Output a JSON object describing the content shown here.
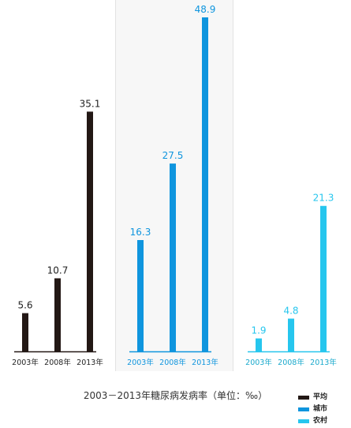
{
  "chart_data": {
    "type": "bar",
    "categories": [
      "2003年",
      "2008年",
      "2013年"
    ],
    "series": [
      {
        "name": "平均",
        "color": "#231815",
        "values": [
          5.6,
          10.7,
          35.1
        ],
        "labels": [
          "5.6",
          "10.7",
          "35.1"
        ]
      },
      {
        "name": "城市",
        "color": "#0f95de",
        "values": [
          16.3,
          27.5,
          48.9
        ],
        "labels": [
          "16.3",
          "27.5",
          "48.9"
        ]
      },
      {
        "name": "农村",
        "color": "#26c6ee",
        "values": [
          1.9,
          4.8,
          21.3
        ],
        "labels": [
          "1.9",
          "4.8",
          "21.3"
        ]
      }
    ],
    "title": "2003－2013年糖尿病发病率（单位：‰）",
    "ylim": [
      0,
      52
    ],
    "layout": "three side-by-side panels, one per series",
    "grid": false,
    "legend": "bottom-right"
  },
  "background_colors": [
    "#ffffff",
    "#f7f7f7",
    "#ffffff"
  ]
}
